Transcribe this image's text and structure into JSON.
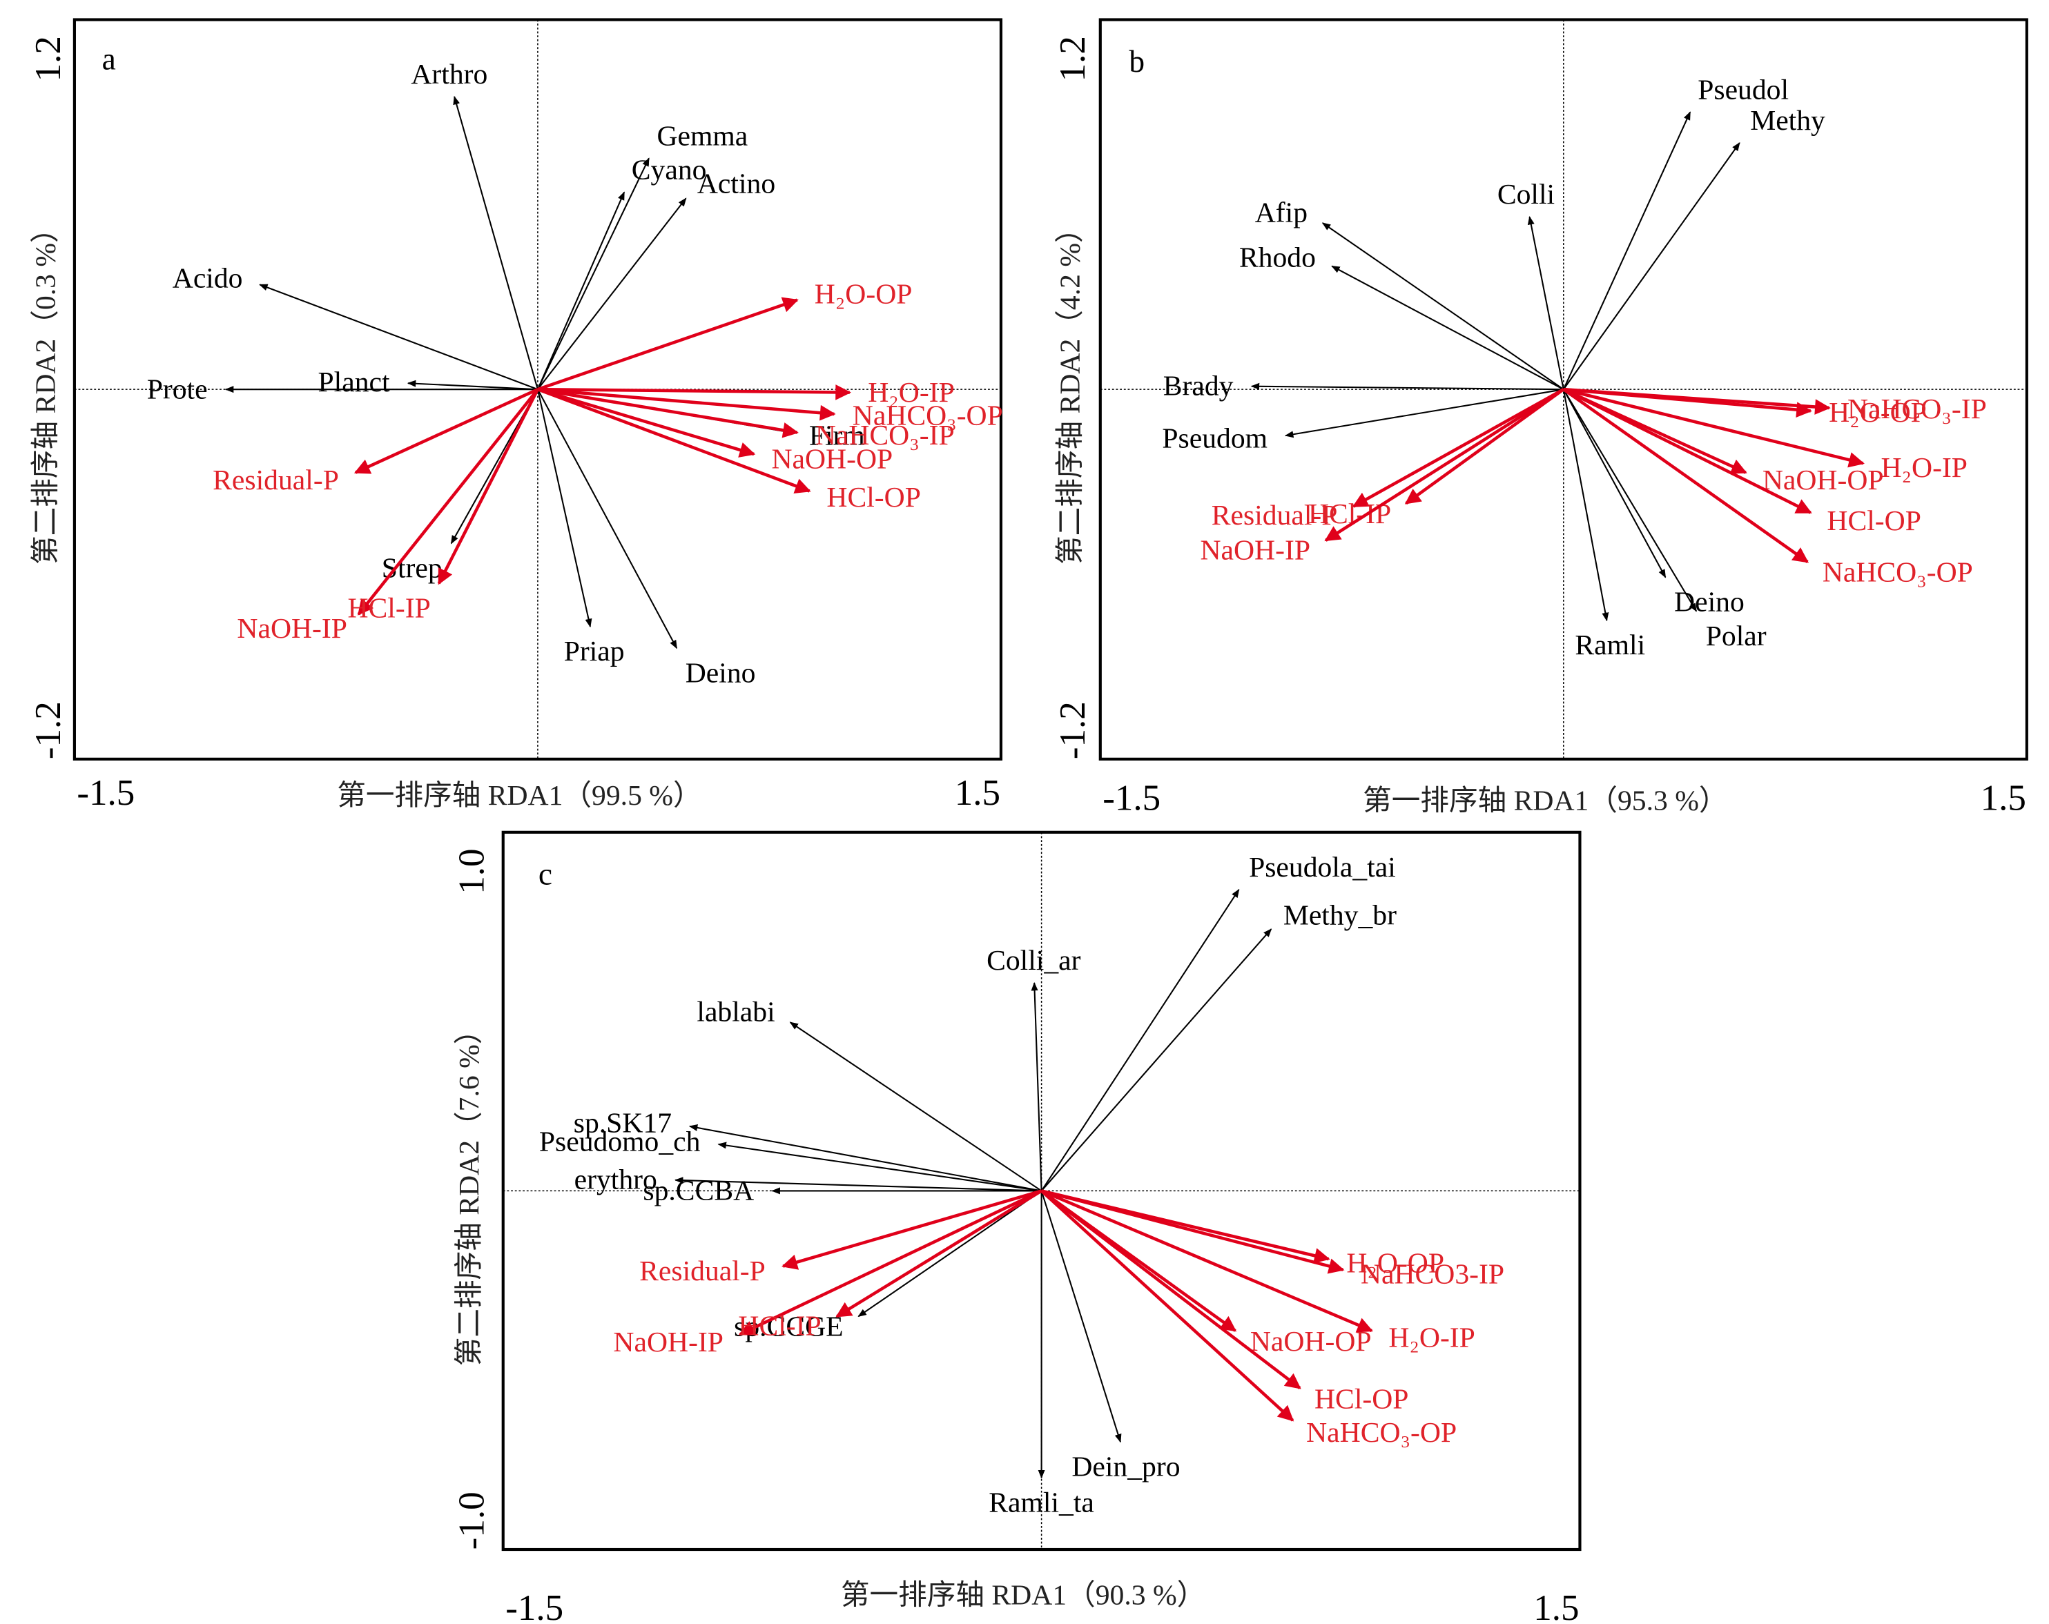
{
  "chart_data": [
    {
      "type": "scatter",
      "subtype": "rda-biplot",
      "panel": "a",
      "xlabel": "第一排序轴 RDA1（99.5 %）",
      "ylabel": "第二排序轴 RDA2（0.3 %）",
      "xlim": [
        -1.5,
        1.5
      ],
      "ylim": [
        -1.2,
        1.2
      ],
      "x_tick_labels": [
        "-1.5",
        "1.5"
      ],
      "y_tick_labels": [
        "-1.2",
        "1.2"
      ],
      "grid": false,
      "species_color": "#000000",
      "env_color": "#e0001a",
      "species": [
        {
          "name": "Arthro",
          "x": -0.27,
          "y": 0.95
        },
        {
          "name": "Gemma",
          "x": 0.36,
          "y": 0.75
        },
        {
          "name": "Cyano",
          "x": 0.28,
          "y": 0.64
        },
        {
          "name": "Actino",
          "x": 0.48,
          "y": 0.62
        },
        {
          "name": "Acido",
          "x": -0.9,
          "y": 0.34
        },
        {
          "name": "Prote",
          "x": -1.01,
          "y": 0.0
        },
        {
          "name": "Planct",
          "x": -0.42,
          "y": 0.02
        },
        {
          "name": "Firm",
          "x": 0.82,
          "y": -0.14
        },
        {
          "name": "Strep",
          "x": -0.28,
          "y": -0.5
        },
        {
          "name": "Priap",
          "x": 0.17,
          "y": -0.77
        },
        {
          "name": "Deino",
          "x": 0.45,
          "y": -0.84
        }
      ],
      "env": [
        {
          "name": "H₂O-OP",
          "x": 0.84,
          "y": 0.29
        },
        {
          "name": "H₂O-IP",
          "x": 1.01,
          "y": -0.01
        },
        {
          "name": "NaHCO₃-OP",
          "x": 0.96,
          "y": -0.08
        },
        {
          "name": "NaHCO₃-IP",
          "x": 0.84,
          "y": -0.14
        },
        {
          "name": "NaOH-OP",
          "x": 0.7,
          "y": -0.21
        },
        {
          "name": "HCl-OP",
          "x": 0.88,
          "y": -0.33
        },
        {
          "name": "Residual-P",
          "x": -0.59,
          "y": -0.27
        },
        {
          "name": "NaOH-IP",
          "x": -0.58,
          "y": -0.73
        },
        {
          "name": "HCl-IP",
          "x": -0.32,
          "y": -0.63
        }
      ]
    },
    {
      "type": "scatter",
      "subtype": "rda-biplot",
      "panel": "b",
      "xlabel": "第一排序轴 RDA1（95.3 %）",
      "ylabel": "第二排序轴 RDA2（4.2 %）",
      "xlim": [
        -1.5,
        1.5
      ],
      "ylim": [
        -1.2,
        1.2
      ],
      "x_tick_labels": [
        "-1.5",
        "1.5"
      ],
      "y_tick_labels": [
        "-1.2",
        "1.2"
      ],
      "grid": false,
      "species_color": "#000000",
      "env_color": "#e0001a",
      "species": [
        {
          "name": "Pseudol",
          "x": 0.41,
          "y": 0.9
        },
        {
          "name": "Methy",
          "x": 0.57,
          "y": 0.8
        },
        {
          "name": "Colli",
          "x": -0.11,
          "y": 0.56
        },
        {
          "name": "Afip",
          "x": -0.78,
          "y": 0.54
        },
        {
          "name": "Rhodo",
          "x": -0.75,
          "y": 0.4
        },
        {
          "name": "Brady",
          "x": -1.01,
          "y": 0.01
        },
        {
          "name": "Pseudom",
          "x": -0.9,
          "y": -0.15
        },
        {
          "name": "Deino",
          "x": 0.33,
          "y": -0.61
        },
        {
          "name": "Ramli",
          "x": 0.14,
          "y": -0.75
        },
        {
          "name": "Polar",
          "x": 0.43,
          "y": -0.72
        }
      ],
      "env": [
        {
          "name": "NaHCO₃-IP",
          "x": 0.86,
          "y": -0.06
        },
        {
          "name": "H₂O-OP",
          "x": 0.8,
          "y": -0.07
        },
        {
          "name": "H₂O-IP",
          "x": 0.97,
          "y": -0.24
        },
        {
          "name": "NaOH-OP",
          "x": 0.59,
          "y": -0.27
        },
        {
          "name": "HCl-OP",
          "x": 0.8,
          "y": -0.4
        },
        {
          "name": "NaHCO₃-OP",
          "x": 0.79,
          "y": -0.56
        },
        {
          "name": "Residual-P",
          "x": -0.68,
          "y": -0.38
        },
        {
          "name": "HCl-IP",
          "x": -0.51,
          "y": -0.37
        },
        {
          "name": "NaOH-IP",
          "x": -0.77,
          "y": -0.49
        }
      ]
    },
    {
      "type": "scatter",
      "subtype": "rda-biplot",
      "panel": "c",
      "xlabel": "第一排序轴 RDA1（90.3 %）",
      "ylabel": "第二排序轴 RDA2（7.6 %）",
      "xlim": [
        -1.5,
        1.5
      ],
      "ylim": [
        -1.0,
        1.0
      ],
      "x_tick_labels": [
        "-1.5",
        "1.5"
      ],
      "y_tick_labels": [
        "-1.0",
        "1.0"
      ],
      "grid": false,
      "species_color": "#000000",
      "env_color": "#e0001a",
      "species": [
        {
          "name": "Pseudola_tai",
          "x": 0.55,
          "y": 0.84
        },
        {
          "name": "Methy_br",
          "x": 0.64,
          "y": 0.73
        },
        {
          "name": "Colli_ar",
          "x": -0.02,
          "y": 0.58
        },
        {
          "name": "lablabi",
          "x": -0.7,
          "y": 0.47
        },
        {
          "name": "sp.SK17",
          "x": -0.98,
          "y": 0.18
        },
        {
          "name": "Pseudomo_ch",
          "x": -0.9,
          "y": 0.13
        },
        {
          "name": "erythro",
          "x": -1.02,
          "y": 0.03
        },
        {
          "name": "sp.CCBA",
          "x": -0.75,
          "y": 0.0
        },
        {
          "name": "sp.CCGE",
          "x": -0.51,
          "y": -0.35
        },
        {
          "name": "Ramli_ta",
          "x": 0.0,
          "y": -0.8
        },
        {
          "name": "Dein_pro",
          "x": 0.22,
          "y": -0.7
        }
      ],
      "env": [
        {
          "name": "H₂O-OP",
          "x": 0.8,
          "y": -0.19
        },
        {
          "name": "NaHCO3-IP",
          "x": 0.84,
          "y": -0.22
        },
        {
          "name": "H₂O-IP",
          "x": 0.92,
          "y": -0.39
        },
        {
          "name": "NaOH-OP",
          "x": 0.54,
          "y": -0.39
        },
        {
          "name": "HCl-OP",
          "x": 0.72,
          "y": -0.55
        },
        {
          "name": "NaHCO₃-OP",
          "x": 0.7,
          "y": -0.64
        },
        {
          "name": "Residual-P",
          "x": -0.72,
          "y": -0.21
        },
        {
          "name": "NaOH-IP",
          "x": -0.84,
          "y": -0.4
        },
        {
          "name": "HCl-IP",
          "x": -0.57,
          "y": -0.35
        }
      ]
    }
  ]
}
